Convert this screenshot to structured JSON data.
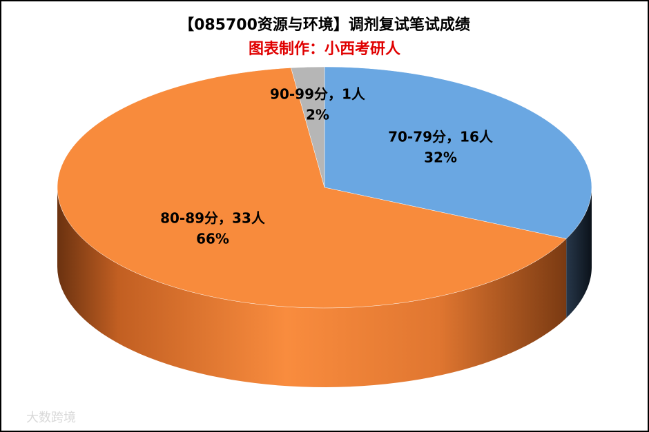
{
  "chart_data": {
    "type": "pie3d",
    "title": "【085700资源与环境】调剂复试笔试成绩",
    "subtitle": "图表制作：小西考研人",
    "categories": [
      "70-79分，16人",
      "80-89分，33人",
      "90-99分，1人"
    ],
    "values": [
      16,
      33,
      1
    ],
    "percents": [
      32,
      66,
      2
    ],
    "percent_labels": [
      "32%",
      "66%",
      "2%"
    ],
    "colors": [
      "#6aa7e2",
      "#f88b3c",
      "#b6b6b6"
    ],
    "watermark": "大数跨境"
  }
}
